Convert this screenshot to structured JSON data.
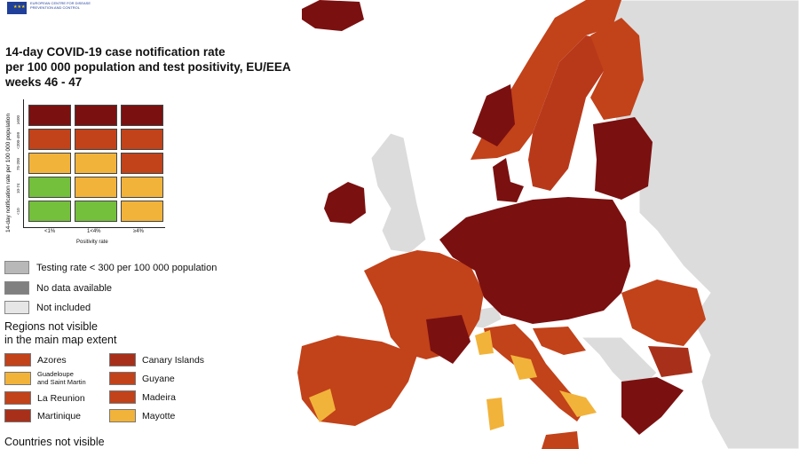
{
  "logo": {
    "text": "EUROPEAN CENTRE FOR DISEASE PREVENTION AND CONTROL"
  },
  "title": {
    "line1": "14-day COVID-19 case notification rate",
    "line2": "per 100 000 population and test positivity, EU/EEA",
    "line3": "weeks 46 - 47"
  },
  "matrix": {
    "y_axis_label": "14-day notification rate per 100 000 population",
    "y_ticks": [
      "≥500",
      "<200-499",
      "75-200",
      "10-74",
      "<10"
    ],
    "x_axis_label": "Positivity rate",
    "x_ticks": [
      "<1%",
      "1<4%",
      "≥4%"
    ],
    "colors": [
      [
        "#7b1010",
        "#7b1010",
        "#7b1010"
      ],
      [
        "#c2421a",
        "#c2421a",
        "#c2421a"
      ],
      [
        "#f2b33a",
        "#f2b33a",
        "#c2421a"
      ],
      [
        "#74bf3b",
        "#f2b33a",
        "#f2b33a"
      ],
      [
        "#74bf3b",
        "#74bf3b",
        "#f2b33a"
      ]
    ]
  },
  "legend": {
    "items": [
      {
        "label": "Testing rate < 300 per 100 000 population",
        "color": "#b8b8b8"
      },
      {
        "label": "No data available",
        "color": "#808080"
      },
      {
        "label": "Not included",
        "color": "#e6e6e6"
      }
    ]
  },
  "regions": {
    "heading_line1": "Regions not visible",
    "heading_line2": "in the main map extent",
    "left": [
      {
        "label": "Azores",
        "color": "#c2421a"
      },
      {
        "label_line1": "Guadeloupe",
        "label_line2": "and Saint Martin",
        "color": "#f2b33a"
      },
      {
        "label": "La Reunion",
        "color": "#c2421a"
      },
      {
        "label": "Martinique",
        "color": "#a8301a"
      }
    ],
    "right": [
      {
        "label": "Canary Islands",
        "color": "#a8301a"
      },
      {
        "label": "Guyane",
        "color": "#c2421a"
      },
      {
        "label": "Madeira",
        "color": "#c2421a"
      },
      {
        "label": "Mayotte",
        "color": "#f2b33a"
      }
    ]
  },
  "countries_heading": "Countries not visible",
  "map_colors": {
    "sea": "#ffffff",
    "not_included": "#dcdcdc",
    "dark_red": "#7b1010",
    "red": "#c2421a",
    "orange_red": "#b8391a",
    "yellow": "#f2b33a"
  }
}
